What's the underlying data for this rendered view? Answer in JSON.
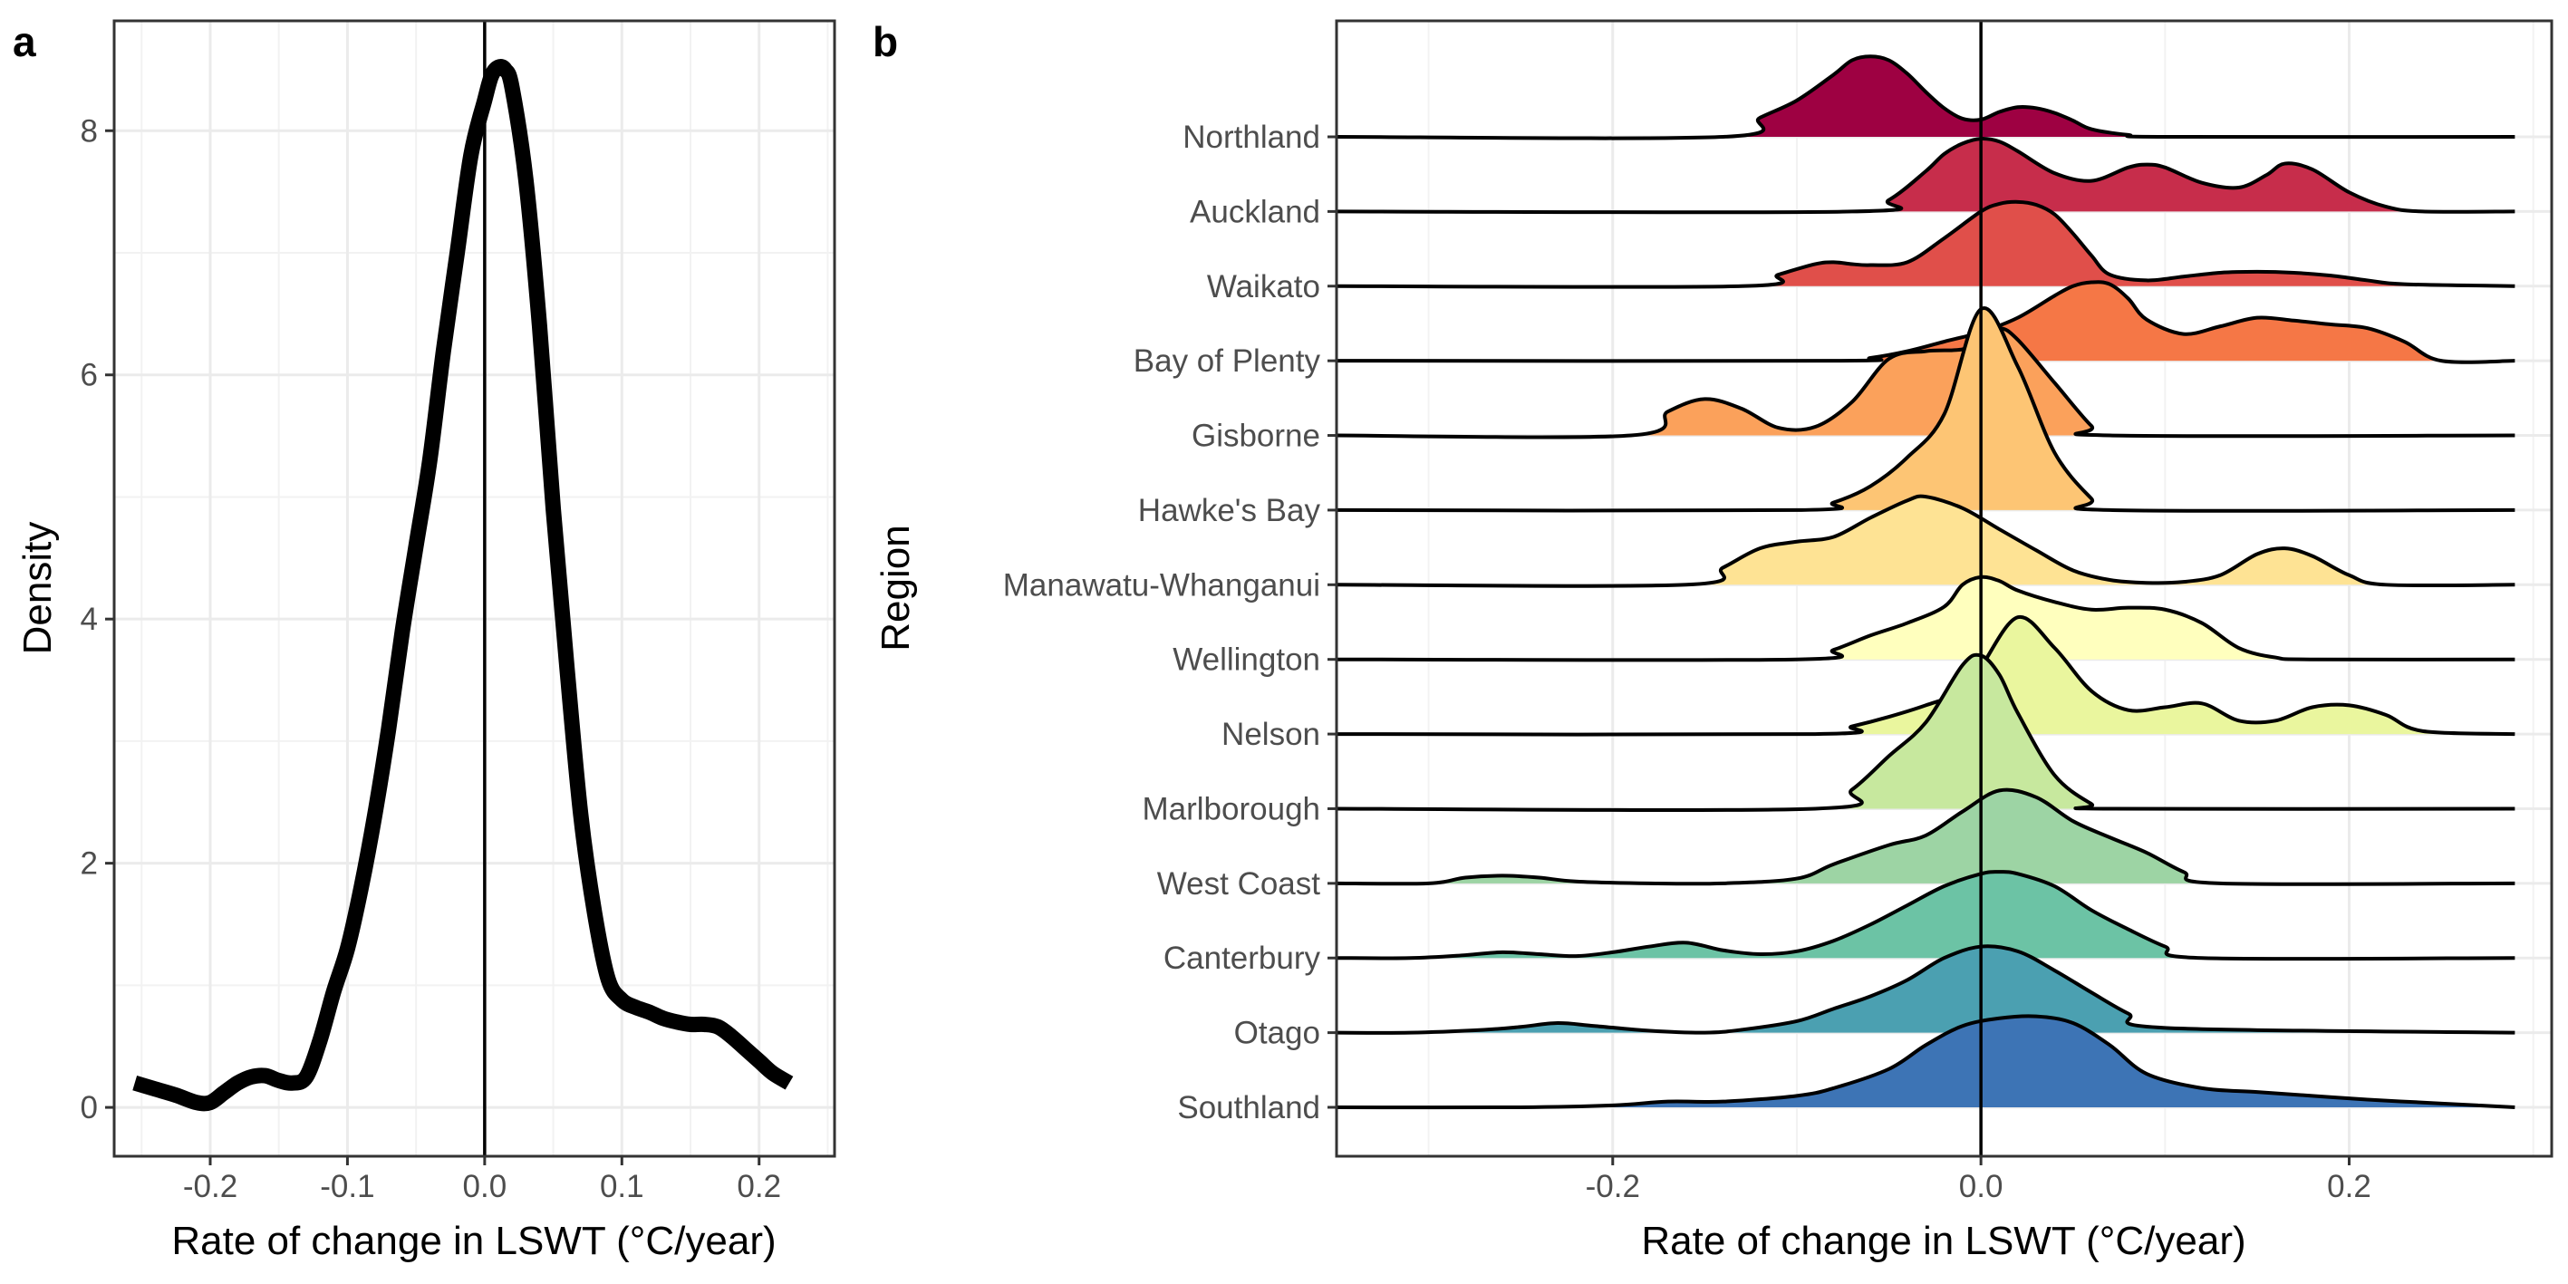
{
  "chart_data": [
    {
      "panel_label": "a",
      "type": "line",
      "xlabel": "Rate of change in LSWT (°C/year)",
      "ylabel": "Density",
      "xlim": [
        -0.27,
        0.255
      ],
      "ylim": [
        -0.4,
        8.9
      ],
      "x_ticks": [
        -0.2,
        -0.1,
        0.0,
        0.1,
        0.2
      ],
      "x_tick_labels": [
        "-0.2",
        "-0.1",
        "0.0",
        "0.1",
        "0.2"
      ],
      "y_ticks": [
        0,
        2,
        4,
        6,
        8
      ],
      "y_tick_labels": [
        "0",
        "2",
        "4",
        "6",
        "8"
      ],
      "grid": true,
      "vline_x": 0,
      "line_color": "#000000",
      "series": [
        {
          "x": [
            -0.255,
            -0.24,
            -0.225,
            -0.21,
            -0.2,
            -0.19,
            -0.18,
            -0.17,
            -0.16,
            -0.15,
            -0.14,
            -0.13,
            -0.12,
            -0.11,
            -0.1,
            -0.09,
            -0.08,
            -0.07,
            -0.06,
            -0.05,
            -0.04,
            -0.03,
            -0.02,
            -0.01,
            0.0,
            0.005,
            0.01,
            0.015,
            0.02,
            0.03,
            0.04,
            0.05,
            0.06,
            0.07,
            0.08,
            0.09,
            0.1,
            0.11,
            0.12,
            0.13,
            0.14,
            0.15,
            0.16,
            0.17,
            0.18,
            0.19,
            0.2,
            0.21,
            0.222
          ],
          "y": [
            0.2,
            0.15,
            0.1,
            0.04,
            0.04,
            0.12,
            0.2,
            0.25,
            0.26,
            0.22,
            0.2,
            0.25,
            0.55,
            0.95,
            1.3,
            1.8,
            2.4,
            3.1,
            3.9,
            4.6,
            5.3,
            6.2,
            7.0,
            7.8,
            8.25,
            8.45,
            8.52,
            8.5,
            8.35,
            7.6,
            6.4,
            4.9,
            3.6,
            2.4,
            1.6,
            1.05,
            0.88,
            0.82,
            0.78,
            0.73,
            0.7,
            0.68,
            0.68,
            0.66,
            0.58,
            0.48,
            0.38,
            0.28,
            0.2
          ]
        }
      ]
    },
    {
      "panel_label": "b",
      "type": "ridgeline",
      "xlabel": "Rate of change in LSWT (°C/year)",
      "ylabel": "Region",
      "xlim": [
        -0.35,
        0.31
      ],
      "x_ticks": [
        -0.2,
        0.0,
        0.2
      ],
      "x_tick_labels": [
        "-0.2",
        "0.0",
        "0.2"
      ],
      "grid": true,
      "vline_x": 0,
      "line_color": "#000000",
      "series": [
        {
          "name": "Northland",
          "fill": "#9E0142",
          "x": [
            -0.35,
            -0.14,
            -0.12,
            -0.1,
            -0.08,
            -0.07,
            -0.06,
            -0.05,
            -0.04,
            -0.03,
            -0.02,
            -0.01,
            0.0,
            0.01,
            0.02,
            0.03,
            0.04,
            0.05,
            0.06,
            0.08,
            0.1,
            0.29
          ],
          "y": [
            0.0,
            0.0,
            0.2,
            0.38,
            0.65,
            0.8,
            0.84,
            0.8,
            0.66,
            0.47,
            0.3,
            0.19,
            0.18,
            0.26,
            0.31,
            0.3,
            0.25,
            0.17,
            0.08,
            0.02,
            0.0,
            0.0
          ]
        },
        {
          "name": "Auckland",
          "fill": "#C72D4B",
          "x": [
            -0.35,
            -0.07,
            -0.05,
            -0.03,
            -0.02,
            -0.01,
            0.0,
            0.01,
            0.02,
            0.04,
            0.06,
            0.08,
            0.09,
            0.1,
            0.12,
            0.14,
            0.155,
            0.165,
            0.18,
            0.2,
            0.22,
            0.24,
            0.29
          ],
          "y": [
            0.0,
            0.0,
            0.12,
            0.42,
            0.6,
            0.71,
            0.76,
            0.73,
            0.63,
            0.4,
            0.32,
            0.46,
            0.49,
            0.46,
            0.3,
            0.25,
            0.38,
            0.5,
            0.44,
            0.2,
            0.05,
            0.0,
            0.0
          ]
        },
        {
          "name": "Waikato",
          "fill": "#E04F4A",
          "x": [
            -0.35,
            -0.13,
            -0.11,
            -0.09,
            -0.08,
            -0.07,
            -0.06,
            -0.04,
            -0.02,
            0.0,
            0.01,
            0.02,
            0.03,
            0.04,
            0.05,
            0.06,
            0.07,
            0.09,
            0.11,
            0.13,
            0.15,
            0.17,
            0.19,
            0.21,
            0.23,
            0.29
          ],
          "y": [
            0.0,
            0.0,
            0.12,
            0.23,
            0.25,
            0.23,
            0.22,
            0.25,
            0.5,
            0.78,
            0.86,
            0.88,
            0.85,
            0.75,
            0.55,
            0.32,
            0.12,
            0.06,
            0.1,
            0.14,
            0.15,
            0.14,
            0.11,
            0.06,
            0.02,
            0.0
          ]
        },
        {
          "name": "Bay of Plenty",
          "fill": "#F57746",
          "x": [
            -0.35,
            -0.08,
            -0.06,
            -0.04,
            -0.02,
            0.0,
            0.02,
            0.04,
            0.05,
            0.06,
            0.07,
            0.08,
            0.09,
            0.11,
            0.13,
            0.15,
            0.17,
            0.19,
            0.21,
            0.23,
            0.25,
            0.29
          ],
          "y": [
            0.0,
            0.0,
            0.03,
            0.1,
            0.2,
            0.3,
            0.45,
            0.68,
            0.78,
            0.82,
            0.8,
            0.65,
            0.43,
            0.28,
            0.36,
            0.45,
            0.42,
            0.38,
            0.34,
            0.2,
            0.0,
            0.0
          ]
        },
        {
          "name": "Gisborne",
          "fill": "#FBA15B",
          "x": [
            -0.35,
            -0.19,
            -0.17,
            -0.15,
            -0.13,
            -0.11,
            -0.09,
            -0.07,
            -0.05,
            -0.03,
            -0.01,
            0.0,
            0.01,
            0.02,
            0.04,
            0.06,
            0.07,
            0.29
          ],
          "y": [
            0.0,
            0.0,
            0.25,
            0.38,
            0.28,
            0.08,
            0.09,
            0.35,
            0.8,
            0.88,
            0.9,
            1.0,
            1.12,
            1.0,
            0.55,
            0.1,
            0.0,
            0.0
          ]
        },
        {
          "name": "Hawke's Bay",
          "fill": "#FDC574",
          "x": [
            -0.35,
            -0.1,
            -0.08,
            -0.06,
            -0.04,
            -0.02,
            0.0,
            0.02,
            0.04,
            0.06,
            0.07,
            0.29
          ],
          "y": [
            0.0,
            0.0,
            0.08,
            0.25,
            0.55,
            1.0,
            2.1,
            1.5,
            0.6,
            0.12,
            0.0,
            0.0
          ]
        },
        {
          "name": "Manawatu-Whanganui",
          "fill": "#FEE394",
          "x": [
            -0.35,
            -0.16,
            -0.14,
            -0.12,
            -0.1,
            -0.08,
            -0.06,
            -0.04,
            -0.03,
            -0.01,
            0.01,
            0.03,
            0.05,
            0.07,
            0.09,
            0.11,
            0.13,
            0.15,
            0.165,
            0.18,
            0.2,
            0.22,
            0.29
          ],
          "y": [
            0.0,
            0.0,
            0.18,
            0.38,
            0.45,
            0.5,
            0.7,
            0.88,
            0.92,
            0.8,
            0.58,
            0.36,
            0.15,
            0.05,
            0.02,
            0.03,
            0.1,
            0.32,
            0.38,
            0.3,
            0.1,
            0.0,
            0.0
          ]
        },
        {
          "name": "Wellington",
          "fill": "#FFFFBE",
          "x": [
            -0.35,
            -0.1,
            -0.08,
            -0.06,
            -0.04,
            -0.02,
            -0.01,
            0.0,
            0.01,
            0.02,
            0.04,
            0.06,
            0.08,
            0.1,
            0.12,
            0.14,
            0.16,
            0.18,
            0.29
          ],
          "y": [
            0.0,
            0.0,
            0.1,
            0.25,
            0.38,
            0.55,
            0.78,
            0.86,
            0.82,
            0.72,
            0.6,
            0.52,
            0.54,
            0.52,
            0.38,
            0.12,
            0.02,
            0.0,
            0.0
          ]
        },
        {
          "name": "Nelson",
          "fill": "#EAF69E",
          "x": [
            -0.35,
            -0.09,
            -0.07,
            -0.05,
            -0.03,
            -0.01,
            0.0,
            0.02,
            0.04,
            0.06,
            0.08,
            0.1,
            0.12,
            0.14,
            0.16,
            0.18,
            0.2,
            0.22,
            0.24,
            0.29
          ],
          "y": [
            0.0,
            0.0,
            0.08,
            0.18,
            0.3,
            0.45,
            0.7,
            1.22,
            0.9,
            0.45,
            0.25,
            0.28,
            0.32,
            0.14,
            0.14,
            0.28,
            0.3,
            0.2,
            0.03,
            0.0
          ]
        },
        {
          "name": "Marlborough",
          "fill": "#C7E89E",
          "x": [
            -0.35,
            -0.09,
            -0.07,
            -0.05,
            -0.03,
            -0.01,
            0.0,
            0.01,
            0.02,
            0.04,
            0.06,
            0.07,
            0.29
          ],
          "y": [
            0.0,
            0.0,
            0.2,
            0.55,
            0.9,
            1.5,
            1.6,
            1.4,
            1.0,
            0.35,
            0.05,
            0.0,
            0.0
          ]
        },
        {
          "name": "West Coast",
          "fill": "#9DD4A4",
          "x": [
            -0.35,
            -0.3,
            -0.28,
            -0.26,
            -0.24,
            -0.22,
            -0.18,
            -0.14,
            -0.1,
            -0.08,
            -0.05,
            -0.03,
            -0.01,
            0.01,
            0.03,
            0.05,
            0.07,
            0.09,
            0.11,
            0.13,
            0.29
          ],
          "y": [
            0.0,
            0.0,
            0.06,
            0.08,
            0.06,
            0.02,
            0.0,
            0.0,
            0.05,
            0.2,
            0.4,
            0.5,
            0.75,
            0.97,
            0.9,
            0.65,
            0.48,
            0.32,
            0.12,
            0.0,
            0.0
          ]
        },
        {
          "name": "Canterbury",
          "fill": "#6CC3A5",
          "x": [
            -0.35,
            -0.31,
            -0.28,
            -0.26,
            -0.24,
            -0.22,
            -0.2,
            -0.18,
            -0.16,
            -0.14,
            -0.12,
            -0.1,
            -0.08,
            -0.06,
            -0.04,
            -0.02,
            0.0,
            0.01,
            0.02,
            0.04,
            0.06,
            0.08,
            0.1,
            0.12,
            0.29
          ],
          "y": [
            0.0,
            0.0,
            0.03,
            0.06,
            0.04,
            0.02,
            0.06,
            0.12,
            0.16,
            0.08,
            0.04,
            0.07,
            0.18,
            0.35,
            0.55,
            0.75,
            0.88,
            0.9,
            0.88,
            0.75,
            0.5,
            0.3,
            0.12,
            0.0,
            0.0
          ]
        },
        {
          "name": "Otago",
          "fill": "#4BA0B1",
          "x": [
            -0.35,
            -0.31,
            -0.27,
            -0.25,
            -0.23,
            -0.21,
            -0.18,
            -0.15,
            -0.13,
            -0.1,
            -0.08,
            -0.06,
            -0.04,
            -0.02,
            0.0,
            0.02,
            0.04,
            0.06,
            0.08,
            0.1,
            0.29
          ],
          "y": [
            0.0,
            0.0,
            0.03,
            0.06,
            0.1,
            0.07,
            0.02,
            0.0,
            0.03,
            0.12,
            0.25,
            0.38,
            0.55,
            0.78,
            0.9,
            0.85,
            0.65,
            0.42,
            0.2,
            0.05,
            0.0
          ]
        },
        {
          "name": "Southland",
          "fill": "#3D74B5",
          "x": [
            -0.35,
            -0.25,
            -0.2,
            -0.17,
            -0.14,
            -0.1,
            -0.08,
            -0.05,
            -0.03,
            -0.01,
            0.01,
            0.03,
            0.05,
            0.07,
            0.09,
            0.12,
            0.15,
            0.18,
            0.21,
            0.24,
            0.27,
            0.29
          ],
          "y": [
            0.0,
            0.0,
            0.02,
            0.06,
            0.06,
            0.12,
            0.2,
            0.4,
            0.65,
            0.85,
            0.93,
            0.95,
            0.88,
            0.65,
            0.35,
            0.2,
            0.16,
            0.12,
            0.08,
            0.05,
            0.02,
            0.0
          ]
        }
      ]
    }
  ]
}
